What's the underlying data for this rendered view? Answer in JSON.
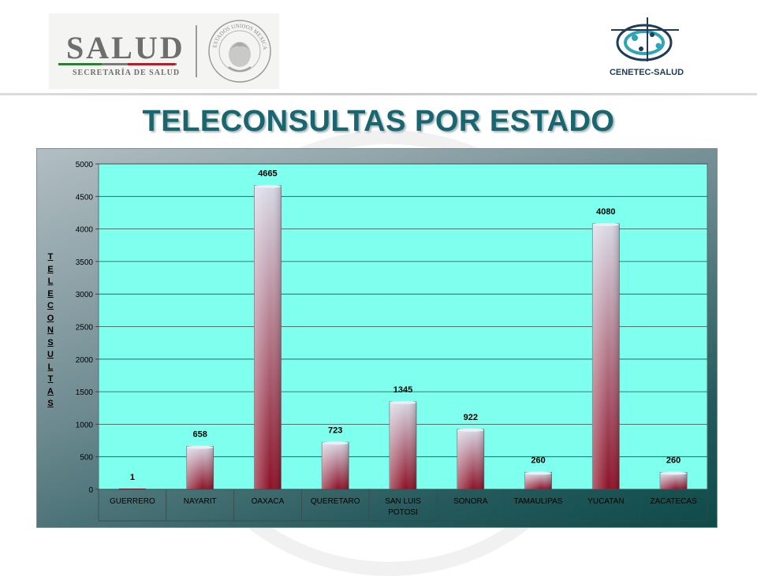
{
  "header": {
    "salud_title": "SALUD",
    "salud_subtitle": "SECRETARÍA DE SALUD",
    "seal_text": "ESTADOS UNIDOS MEXICANOS",
    "cenetec_label": "CENETEC-SALUD"
  },
  "page": {
    "title": "TELECONSULTAS POR ESTADO"
  },
  "colors": {
    "title": "#1a6670",
    "plot_background": "#7fffee",
    "bar_top": "#d8d9e6",
    "bar_bottom": "#8c1127"
  },
  "chart_data": {
    "type": "bar",
    "title": "",
    "xlabel": "",
    "ylabel": "TELECONSULTAS",
    "categories": [
      "GUERRERO",
      "NAYARIT",
      "OAXACA",
      "QUERETARO",
      "SAN LUIS POTOSI",
      "SONORA",
      "TAMAULIPAS",
      "YUCATAN",
      "ZACATECAS"
    ],
    "values": [
      1,
      658,
      4665,
      723,
      1345,
      922,
      260,
      4080,
      260
    ],
    "ylim": [
      0,
      5000
    ],
    "yticks": [
      0,
      500,
      1000,
      1500,
      2000,
      2500,
      3000,
      3500,
      4000,
      4500,
      5000
    ],
    "grid": true,
    "legend": "none",
    "data_labels": true
  }
}
